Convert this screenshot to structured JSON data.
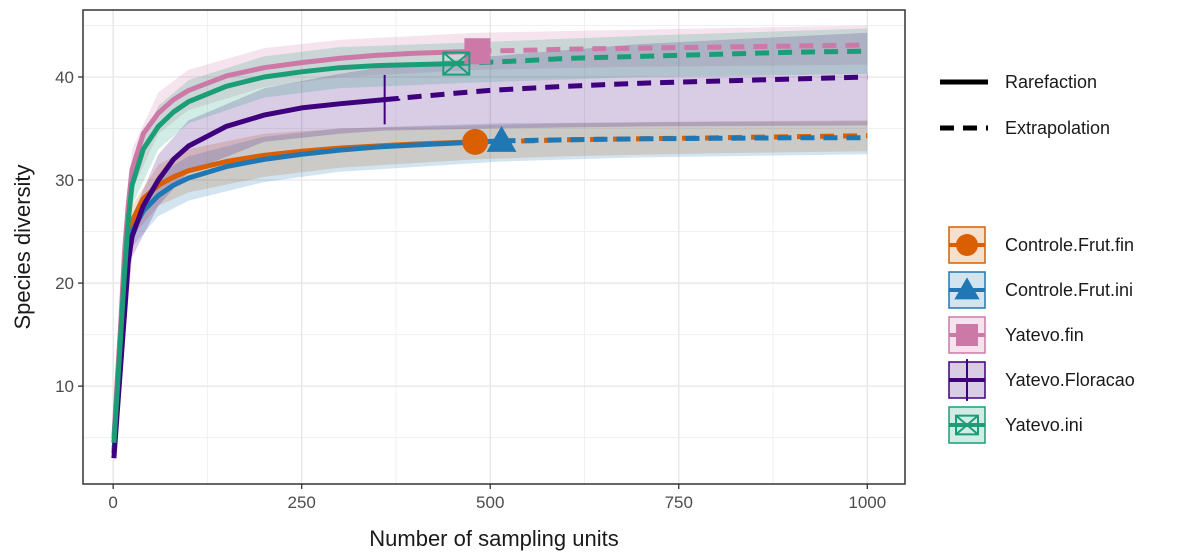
{
  "chart_data": {
    "type": "line",
    "title": "",
    "xlabel": "Number of sampling units",
    "ylabel": "Species diversity",
    "xlim": [
      -40,
      1050
    ],
    "ylim": [
      0.5,
      46.5
    ],
    "xticks": [
      0,
      250,
      500,
      750,
      1000
    ],
    "xtick_labels": [
      "0",
      "250",
      "500",
      "750",
      "1000"
    ],
    "yticks": [
      10,
      20,
      30,
      40
    ],
    "ytick_labels": [
      "10",
      "20",
      "30",
      "40"
    ],
    "grid": true,
    "legend_position": "right",
    "method_legend": [
      {
        "label": "Rarefaction",
        "linestyle": "solid"
      },
      {
        "label": "Extrapolation",
        "linestyle": "dashed"
      }
    ],
    "series": [
      {
        "name": "Controle.Frut.fin",
        "color": "#D95F02",
        "marker": "circle",
        "observed": {
          "x": 480,
          "y": 33.7
        },
        "rarefaction": [
          [
            1,
            3.5
          ],
          [
            5,
            8
          ],
          [
            10,
            13
          ],
          [
            15,
            19
          ],
          [
            20,
            24
          ],
          [
            25,
            26
          ],
          [
            40,
            28.2
          ],
          [
            60,
            29.5
          ],
          [
            80,
            30.3
          ],
          [
            100,
            30.9
          ],
          [
            150,
            31.8
          ],
          [
            200,
            32.4
          ],
          [
            250,
            32.8
          ],
          [
            300,
            33.1
          ],
          [
            350,
            33.3
          ],
          [
            400,
            33.5
          ],
          [
            480,
            33.7
          ]
        ],
        "extrapolation": [
          [
            480,
            33.7
          ],
          [
            550,
            33.8
          ],
          [
            600,
            33.9
          ],
          [
            700,
            34.0
          ],
          [
            800,
            34.1
          ],
          [
            900,
            34.2
          ],
          [
            1000,
            34.3
          ]
        ],
        "ci_lower": [
          [
            1,
            3
          ],
          [
            25,
            24.5
          ],
          [
            60,
            27.5
          ],
          [
            100,
            28.8
          ],
          [
            200,
            30.3
          ],
          [
            300,
            31.2
          ],
          [
            480,
            32
          ],
          [
            600,
            32.3
          ],
          [
            800,
            32.6
          ],
          [
            1000,
            32.8
          ]
        ],
        "ci_upper": [
          [
            1,
            4
          ],
          [
            25,
            27.5
          ],
          [
            60,
            31.5
          ],
          [
            100,
            33
          ],
          [
            200,
            34.5
          ],
          [
            300,
            35
          ],
          [
            480,
            35.3
          ],
          [
            600,
            35.5
          ],
          [
            800,
            35.7
          ],
          [
            1000,
            35.8
          ]
        ]
      },
      {
        "name": "Controle.Frut.ini",
        "color": "#1F78B4",
        "marker": "triangle",
        "observed": {
          "x": 515,
          "y": 33.8
        },
        "rarefaction": [
          [
            1,
            3.5
          ],
          [
            5,
            8
          ],
          [
            10,
            13
          ],
          [
            15,
            19
          ],
          [
            20,
            23
          ],
          [
            25,
            25
          ],
          [
            40,
            27
          ],
          [
            60,
            28.5
          ],
          [
            80,
            29.5
          ],
          [
            100,
            30.2
          ],
          [
            150,
            31.3
          ],
          [
            200,
            32
          ],
          [
            250,
            32.5
          ],
          [
            300,
            32.9
          ],
          [
            350,
            33.2
          ],
          [
            400,
            33.4
          ],
          [
            515,
            33.8
          ]
        ],
        "extrapolation": [
          [
            515,
            33.8
          ],
          [
            600,
            33.9
          ],
          [
            700,
            34.0
          ],
          [
            800,
            34.05
          ],
          [
            900,
            34.1
          ],
          [
            1000,
            34.1
          ]
        ],
        "ci_lower": [
          [
            1,
            3
          ],
          [
            25,
            23.5
          ],
          [
            60,
            26.5
          ],
          [
            100,
            28
          ],
          [
            200,
            29.8
          ],
          [
            300,
            30.8
          ],
          [
            515,
            31.8
          ],
          [
            700,
            32.2
          ],
          [
            1000,
            32.5
          ]
        ],
        "ci_upper": [
          [
            1,
            4
          ],
          [
            25,
            26.5
          ],
          [
            60,
            30.5
          ],
          [
            100,
            32.3
          ],
          [
            200,
            34.2
          ],
          [
            300,
            35
          ],
          [
            515,
            35.5
          ],
          [
            700,
            35.6
          ],
          [
            1000,
            35.7
          ]
        ]
      },
      {
        "name": "Yatevo.fin",
        "color": "#CC79A7",
        "marker": "square",
        "observed": {
          "x": 483,
          "y": 42.5
        },
        "rarefaction": [
          [
            1,
            5
          ],
          [
            5,
            10
          ],
          [
            10,
            16
          ],
          [
            15,
            23
          ],
          [
            20,
            27.5
          ],
          [
            25,
            31
          ],
          [
            40,
            34.5
          ],
          [
            60,
            36.5
          ],
          [
            80,
            37.8
          ],
          [
            100,
            38.7
          ],
          [
            150,
            40.1
          ],
          [
            200,
            40.9
          ],
          [
            250,
            41.4
          ],
          [
            300,
            41.8
          ],
          [
            350,
            42.1
          ],
          [
            400,
            42.3
          ],
          [
            483,
            42.5
          ]
        ],
        "extrapolation": [
          [
            483,
            42.5
          ],
          [
            550,
            42.6
          ],
          [
            600,
            42.7
          ],
          [
            700,
            42.8
          ],
          [
            800,
            42.9
          ],
          [
            900,
            43.0
          ],
          [
            1000,
            43.1
          ]
        ],
        "ci_lower": [
          [
            1,
            4.5
          ],
          [
            25,
            29
          ],
          [
            60,
            34.5
          ],
          [
            100,
            36.8
          ],
          [
            200,
            39
          ],
          [
            300,
            40
          ],
          [
            483,
            40.7
          ],
          [
            700,
            41
          ],
          [
            1000,
            41.2
          ]
        ],
        "ci_upper": [
          [
            1,
            5.5
          ],
          [
            25,
            33
          ],
          [
            60,
            38.5
          ],
          [
            100,
            40.7
          ],
          [
            200,
            42.8
          ],
          [
            300,
            43.6
          ],
          [
            483,
            44.3
          ],
          [
            700,
            44.6
          ],
          [
            1000,
            45
          ]
        ]
      },
      {
        "name": "Yatevo.Floracao",
        "color": "#3F007D",
        "marker": "plus",
        "observed": {
          "x": 360,
          "y": 37.8
        },
        "rarefaction": [
          [
            1,
            3
          ],
          [
            5,
            7
          ],
          [
            10,
            12
          ],
          [
            15,
            17
          ],
          [
            20,
            22
          ],
          [
            25,
            24.5
          ],
          [
            40,
            27.5
          ],
          [
            60,
            30
          ],
          [
            80,
            32
          ],
          [
            100,
            33.3
          ],
          [
            150,
            35.2
          ],
          [
            200,
            36.3
          ],
          [
            250,
            37
          ],
          [
            300,
            37.4
          ],
          [
            360,
            37.8
          ]
        ],
        "extrapolation": [
          [
            360,
            37.8
          ],
          [
            450,
            38.4
          ],
          [
            500,
            38.7
          ],
          [
            600,
            39.1
          ],
          [
            700,
            39.4
          ],
          [
            800,
            39.6
          ],
          [
            900,
            39.8
          ],
          [
            1000,
            40.0
          ]
        ],
        "ci_lower": [
          [
            1,
            2.5
          ],
          [
            25,
            22.5
          ],
          [
            60,
            27.5
          ],
          [
            100,
            30.8
          ],
          [
            200,
            33.7
          ],
          [
            300,
            34.5
          ],
          [
            360,
            34.8
          ],
          [
            500,
            35
          ],
          [
            700,
            35.2
          ],
          [
            1000,
            35.3
          ]
        ],
        "ci_upper": [
          [
            1,
            3.5
          ],
          [
            25,
            26.5
          ],
          [
            60,
            32.5
          ],
          [
            100,
            35.8
          ],
          [
            200,
            38.9
          ],
          [
            300,
            40.3
          ],
          [
            360,
            41
          ],
          [
            500,
            42
          ],
          [
            700,
            43.2
          ],
          [
            1000,
            44.3
          ]
        ]
      },
      {
        "name": "Yatevo.ini",
        "color": "#1B9E77",
        "marker": "square-x",
        "observed": {
          "x": 455,
          "y": 41.3
        },
        "rarefaction": [
          [
            1,
            4.5
          ],
          [
            5,
            9
          ],
          [
            10,
            15
          ],
          [
            15,
            21
          ],
          [
            20,
            26
          ],
          [
            25,
            29.5
          ],
          [
            40,
            33
          ],
          [
            60,
            35.2
          ],
          [
            80,
            36.6
          ],
          [
            100,
            37.6
          ],
          [
            150,
            39.1
          ],
          [
            200,
            40
          ],
          [
            250,
            40.5
          ],
          [
            300,
            40.9
          ],
          [
            350,
            41.1
          ],
          [
            400,
            41.2
          ],
          [
            455,
            41.3
          ]
        ],
        "extrapolation": [
          [
            455,
            41.3
          ],
          [
            550,
            41.6
          ],
          [
            600,
            41.8
          ],
          [
            700,
            42.0
          ],
          [
            800,
            42.2
          ],
          [
            900,
            42.4
          ],
          [
            1000,
            42.5
          ]
        ],
        "ci_lower": [
          [
            1,
            4
          ],
          [
            25,
            27.5
          ],
          [
            60,
            33
          ],
          [
            100,
            35.5
          ],
          [
            200,
            38
          ],
          [
            300,
            38.9
          ],
          [
            455,
            39.4
          ],
          [
            700,
            40
          ],
          [
            1000,
            40.3
          ]
        ],
        "ci_upper": [
          [
            1,
            5
          ],
          [
            25,
            31.5
          ],
          [
            60,
            37.2
          ],
          [
            100,
            39.7
          ],
          [
            200,
            42
          ],
          [
            300,
            42.9
          ],
          [
            455,
            43.3
          ],
          [
            700,
            44
          ],
          [
            1000,
            44.7
          ]
        ]
      }
    ]
  }
}
